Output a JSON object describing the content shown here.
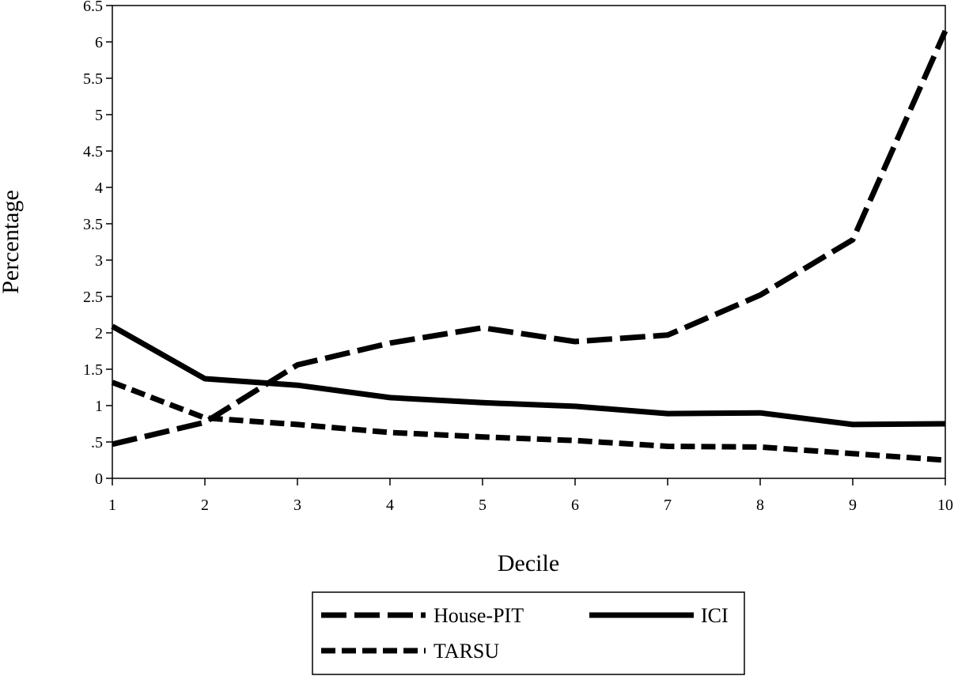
{
  "chart_data": {
    "type": "line",
    "title": "",
    "xlabel": "Decile",
    "ylabel": "Percentage",
    "x": [
      1,
      2,
      3,
      4,
      5,
      6,
      7,
      8,
      9,
      10
    ],
    "xlim": [
      1,
      10
    ],
    "ylim": [
      0,
      6.5
    ],
    "x_ticks": [
      "1",
      "2",
      "3",
      "4",
      "5",
      "6",
      "7",
      "8",
      "9",
      "10"
    ],
    "y_ticks": [
      {
        "value": 0,
        "label": "0"
      },
      {
        "value": 0.5,
        "label": ".5"
      },
      {
        "value": 1,
        "label": "1"
      },
      {
        "value": 1.5,
        "label": "1.5"
      },
      {
        "value": 2,
        "label": "2"
      },
      {
        "value": 2.5,
        "label": "2.5"
      },
      {
        "value": 3,
        "label": "3"
      },
      {
        "value": 3.5,
        "label": "3.5"
      },
      {
        "value": 4,
        "label": "4"
      },
      {
        "value": 4.5,
        "label": "4.5"
      },
      {
        "value": 5,
        "label": "5"
      },
      {
        "value": 5.5,
        "label": "5.5"
      },
      {
        "value": 6,
        "label": "6"
      },
      {
        "value": 6.5,
        "label": "6.5"
      }
    ],
    "grid": false,
    "legend_position": "bottom",
    "series": [
      {
        "name": "House-PIT",
        "style": "long-dash",
        "color": "#000000",
        "values": [
          0.47,
          0.77,
          1.56,
          1.86,
          2.07,
          1.88,
          1.97,
          2.52,
          3.28,
          6.15
        ]
      },
      {
        "name": "ICI",
        "style": "solid",
        "color": "#000000",
        "values": [
          2.09,
          1.37,
          1.28,
          1.11,
          1.04,
          0.99,
          0.89,
          0.9,
          0.74,
          0.75
        ]
      },
      {
        "name": "TARSU",
        "style": "short-dash",
        "color": "#000000",
        "values": [
          1.32,
          0.83,
          0.74,
          0.63,
          0.57,
          0.52,
          0.44,
          0.43,
          0.34,
          0.25
        ]
      }
    ]
  }
}
